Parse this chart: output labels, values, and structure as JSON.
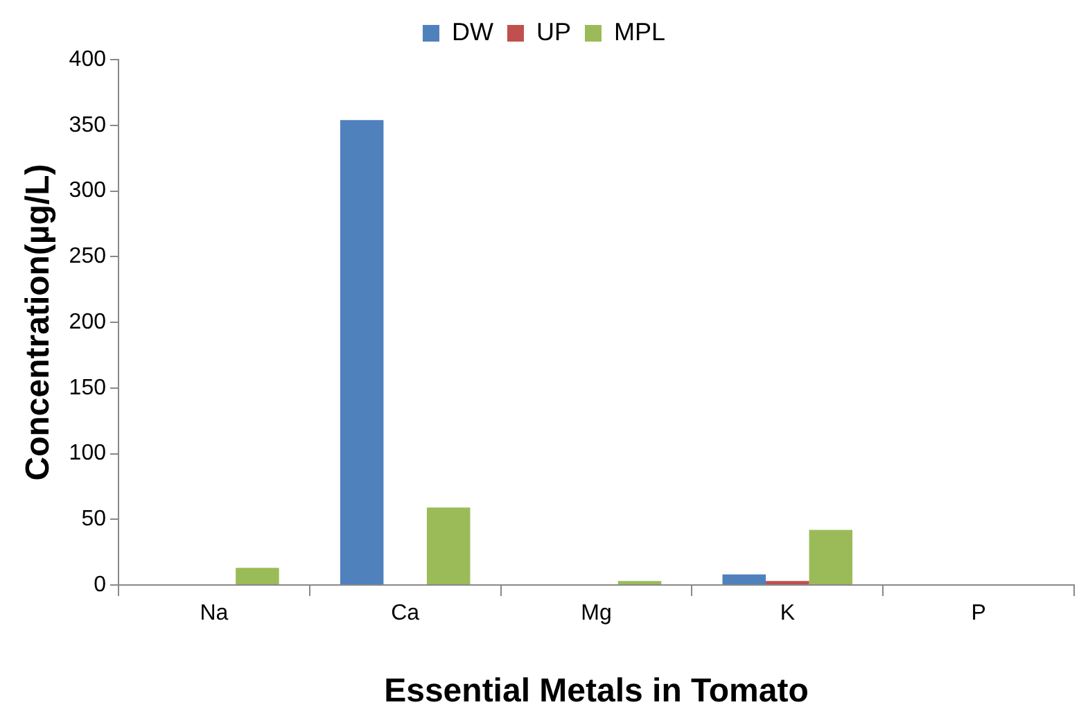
{
  "chart_data": {
    "type": "bar",
    "xlabel": "Essential Metals in Tomato",
    "ylabel": "Concentration(µg/L)",
    "categories": [
      "Na",
      "Ca",
      "Mg",
      "K",
      "P"
    ],
    "series": [
      {
        "name": "DW",
        "color": "#4f81bd",
        "values": [
          0,
          354,
          0,
          8,
          0
        ]
      },
      {
        "name": "UP",
        "color": "#c0504d",
        "values": [
          0,
          0,
          0,
          3,
          0
        ]
      },
      {
        "name": "MPL",
        "color": "#9bbb59",
        "values": [
          13,
          59,
          3,
          42,
          0
        ]
      }
    ],
    "ylim": [
      0,
      400
    ],
    "yticks": [
      0,
      50,
      100,
      150,
      200,
      250,
      300,
      350,
      400
    ],
    "grid": false,
    "legend": "top"
  }
}
